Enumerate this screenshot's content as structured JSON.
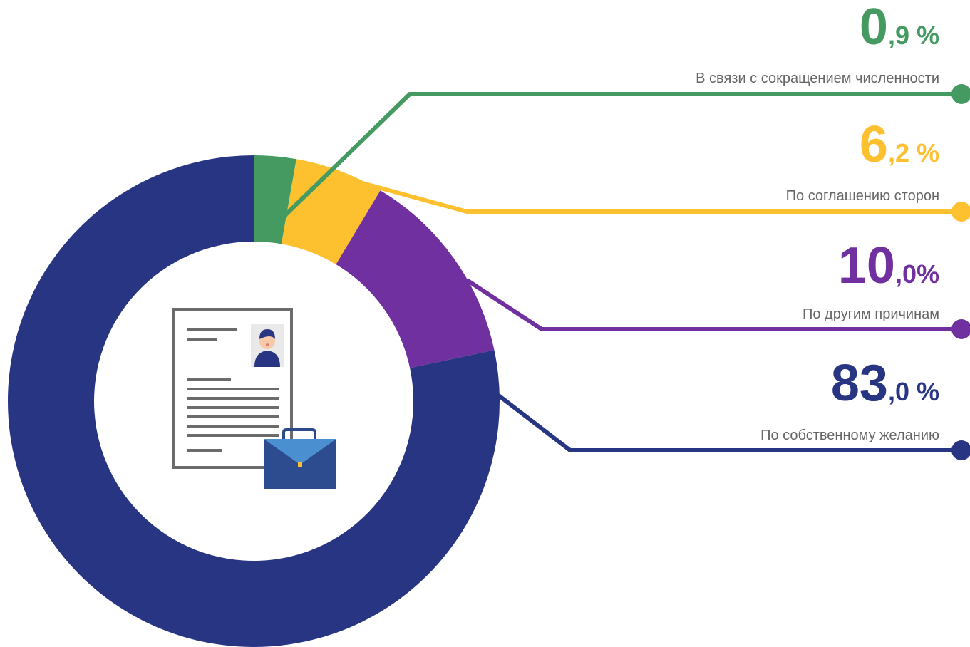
{
  "chart_data": {
    "type": "pie",
    "variant": "donut",
    "slices": [
      {
        "label": "В связи с сокращением численности",
        "value": 0.9,
        "value_text": "0,9 %",
        "int_part": "0",
        "dec_part": ",9 %",
        "color": "#449a61"
      },
      {
        "label": "По соглашению сторон",
        "value": 6.2,
        "value_text": "6,2 %",
        "int_part": "6",
        "dec_part": ",2 %",
        "color": "#fdc02f"
      },
      {
        "label": "По другим причинам",
        "value": 10.0,
        "value_text": "10,0%",
        "int_part": "10",
        "dec_part": ",0%",
        "color": "#7030a0"
      },
      {
        "label": "По собственному желанию",
        "value": 83.0,
        "value_text": "83,0 %",
        "int_part": "83",
        "dec_part": ",0 %",
        "color": "#283583"
      }
    ],
    "legend_placement": "right"
  },
  "icons": {
    "center": "resume-document-with-briefcase-icon"
  }
}
